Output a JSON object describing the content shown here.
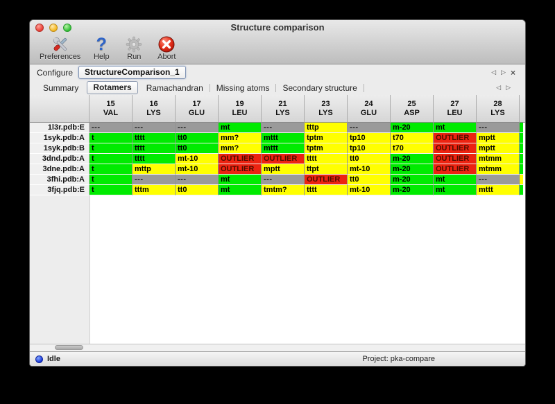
{
  "window": {
    "title": "Structure comparison"
  },
  "toolbar": {
    "items": [
      {
        "label": "Preferences",
        "icon": "tools-icon"
      },
      {
        "label": "Help",
        "icon": "help-icon"
      },
      {
        "label": "Run",
        "icon": "gear-icon"
      },
      {
        "label": "Abort",
        "icon": "abort-icon"
      }
    ]
  },
  "configure": {
    "label": "Configure",
    "value": "StructureComparison_1",
    "nav": {
      "prev": "◁",
      "next": "▷",
      "close": "×"
    }
  },
  "tabs": {
    "items": [
      "Summary",
      "Rotamers",
      "Ramachandran",
      "Missing atoms",
      "Secondary structure"
    ],
    "selected": "Rotamers",
    "nav": {
      "prev": "◁",
      "next": "▷"
    }
  },
  "colors": {
    "ok": "#00EB00",
    "warn": "#FFFF00",
    "outlier": "#EC2311",
    "na": "#9A9A9A"
  },
  "table": {
    "columns": [
      {
        "num": "15",
        "res": "VAL"
      },
      {
        "num": "16",
        "res": "LYS"
      },
      {
        "num": "17",
        "res": "GLU"
      },
      {
        "num": "19",
        "res": "LEU"
      },
      {
        "num": "21",
        "res": "LYS"
      },
      {
        "num": "23",
        "res": "LYS"
      },
      {
        "num": "24",
        "res": "GLU"
      },
      {
        "num": "25",
        "res": "ASP"
      },
      {
        "num": "27",
        "res": "LEU"
      },
      {
        "num": "28",
        "res": "LYS"
      }
    ],
    "rows": [
      {
        "label": "1l3r.pdb:E",
        "overflow_status": "ok",
        "cells": [
          {
            "text": "---",
            "status": "na"
          },
          {
            "text": "---",
            "status": "na"
          },
          {
            "text": "---",
            "status": "na"
          },
          {
            "text": "mt",
            "status": "ok"
          },
          {
            "text": "---",
            "status": "na"
          },
          {
            "text": "tttp",
            "status": "warn"
          },
          {
            "text": "---",
            "status": "na"
          },
          {
            "text": "m-20",
            "status": "ok"
          },
          {
            "text": "mt",
            "status": "ok"
          },
          {
            "text": "---",
            "status": "na"
          }
        ]
      },
      {
        "label": "1syk.pdb:A",
        "overflow_status": "ok",
        "cells": [
          {
            "text": "t",
            "status": "ok"
          },
          {
            "text": "tttt",
            "status": "ok"
          },
          {
            "text": "tt0",
            "status": "ok"
          },
          {
            "text": "mm?",
            "status": "warn"
          },
          {
            "text": "mttt",
            "status": "ok"
          },
          {
            "text": "tptm",
            "status": "warn"
          },
          {
            "text": "tp10",
            "status": "warn"
          },
          {
            "text": "t70",
            "status": "warn"
          },
          {
            "text": "OUTLIER",
            "status": "outlier"
          },
          {
            "text": "mptt",
            "status": "warn"
          }
        ]
      },
      {
        "label": "1syk.pdb:B",
        "overflow_status": "ok",
        "cells": [
          {
            "text": "t",
            "status": "ok"
          },
          {
            "text": "tttt",
            "status": "ok"
          },
          {
            "text": "tt0",
            "status": "ok"
          },
          {
            "text": "mm?",
            "status": "warn"
          },
          {
            "text": "mttt",
            "status": "ok"
          },
          {
            "text": "tptm",
            "status": "warn"
          },
          {
            "text": "tp10",
            "status": "warn"
          },
          {
            "text": "t70",
            "status": "warn"
          },
          {
            "text": "OUTLIER",
            "status": "outlier"
          },
          {
            "text": "mptt",
            "status": "warn"
          }
        ]
      },
      {
        "label": "3dnd.pdb:A",
        "overflow_status": "ok",
        "cells": [
          {
            "text": "t",
            "status": "ok"
          },
          {
            "text": "tttt",
            "status": "ok"
          },
          {
            "text": "mt-10",
            "status": "warn"
          },
          {
            "text": "OUTLIER",
            "status": "outlier"
          },
          {
            "text": "OUTLIER",
            "status": "outlier"
          },
          {
            "text": "tttt",
            "status": "warn"
          },
          {
            "text": "tt0",
            "status": "warn"
          },
          {
            "text": "m-20",
            "status": "ok"
          },
          {
            "text": "OUTLIER",
            "status": "outlier"
          },
          {
            "text": "mtmm",
            "status": "warn"
          }
        ]
      },
      {
        "label": "3dne.pdb:A",
        "overflow_status": "ok",
        "cells": [
          {
            "text": "t",
            "status": "ok"
          },
          {
            "text": "mttp",
            "status": "warn"
          },
          {
            "text": "mt-10",
            "status": "warn"
          },
          {
            "text": "OUTLIER",
            "status": "outlier"
          },
          {
            "text": "mptt",
            "status": "warn"
          },
          {
            "text": "ttpt",
            "status": "warn"
          },
          {
            "text": "mt-10",
            "status": "warn"
          },
          {
            "text": "m-20",
            "status": "ok"
          },
          {
            "text": "OUTLIER",
            "status": "outlier"
          },
          {
            "text": "mtmm",
            "status": "warn"
          }
        ]
      },
      {
        "label": "3fhi.pdb:A",
        "overflow_status": "warn",
        "cells": [
          {
            "text": "t",
            "status": "ok"
          },
          {
            "text": "---",
            "status": "na"
          },
          {
            "text": "---",
            "status": "na"
          },
          {
            "text": "mt",
            "status": "ok"
          },
          {
            "text": "---",
            "status": "na"
          },
          {
            "text": "OUTLIER",
            "status": "outlier"
          },
          {
            "text": "tt0",
            "status": "warn"
          },
          {
            "text": "m-20",
            "status": "ok"
          },
          {
            "text": "mt",
            "status": "ok"
          },
          {
            "text": "---",
            "status": "na"
          }
        ]
      },
      {
        "label": "3fjq.pdb:E",
        "overflow_status": "ok",
        "cells": [
          {
            "text": "t",
            "status": "ok"
          },
          {
            "text": "tttm",
            "status": "warn"
          },
          {
            "text": "tt0",
            "status": "warn"
          },
          {
            "text": "mt",
            "status": "ok"
          },
          {
            "text": "tmtm?",
            "status": "warn"
          },
          {
            "text": "tttt",
            "status": "warn"
          },
          {
            "text": "mt-10",
            "status": "warn"
          },
          {
            "text": "m-20",
            "status": "ok"
          },
          {
            "text": "mt",
            "status": "ok"
          },
          {
            "text": "mttt",
            "status": "warn"
          }
        ]
      }
    ]
  },
  "statusbar": {
    "status": "Idle",
    "project": "Project: pka-compare"
  }
}
